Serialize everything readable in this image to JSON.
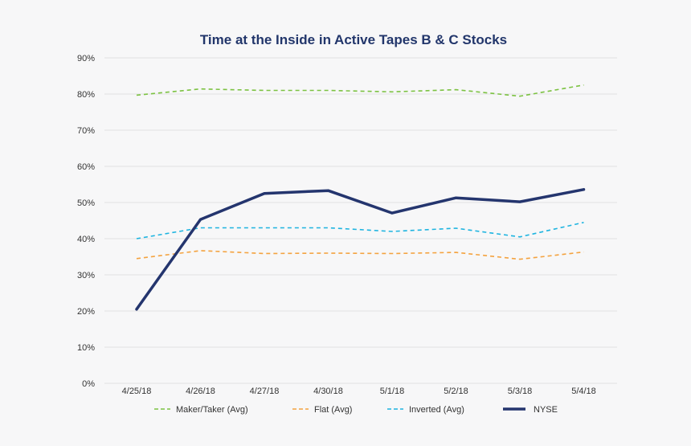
{
  "chart_data": {
    "type": "line",
    "title": "Time at the Inside in Active Tapes B & C Stocks",
    "xlabel": "",
    "ylabel": "",
    "categories": [
      "4/25/18",
      "4/26/18",
      "4/27/18",
      "4/30/18",
      "5/1/18",
      "5/2/18",
      "5/3/18",
      "5/4/18"
    ],
    "ylim": [
      0,
      90
    ],
    "yticks": [
      0,
      10,
      20,
      30,
      40,
      50,
      60,
      70,
      80,
      90
    ],
    "ytick_labels": [
      "0%",
      "10%",
      "20%",
      "30%",
      "40%",
      "50%",
      "60%",
      "70%",
      "80%",
      "90%"
    ],
    "grid": true,
    "legend_position": "bottom",
    "series": [
      {
        "key": "maker_taker",
        "name": "Maker/Taker (Avg)",
        "color": "#7cc242",
        "style": "dashed",
        "values": [
          79.7,
          81.4,
          81.0,
          81.0,
          80.6,
          81.2,
          79.4,
          82.5
        ]
      },
      {
        "key": "flat",
        "name": "Flat (Avg)",
        "color": "#f4a340",
        "style": "dashed",
        "values": [
          34.5,
          36.7,
          35.9,
          36.0,
          35.9,
          36.2,
          34.3,
          36.3
        ]
      },
      {
        "key": "inverted",
        "name": "Inverted (Avg)",
        "color": "#1eb4e0",
        "style": "dashed",
        "values": [
          40.0,
          43.0,
          43.0,
          43.0,
          42.0,
          42.9,
          40.5,
          44.5
        ]
      },
      {
        "key": "nyse",
        "name": "NYSE",
        "color": "#24356e",
        "style": "solid",
        "values": [
          20.5,
          45.3,
          52.5,
          53.3,
          47.1,
          51.3,
          50.2,
          53.6
        ]
      }
    ]
  }
}
